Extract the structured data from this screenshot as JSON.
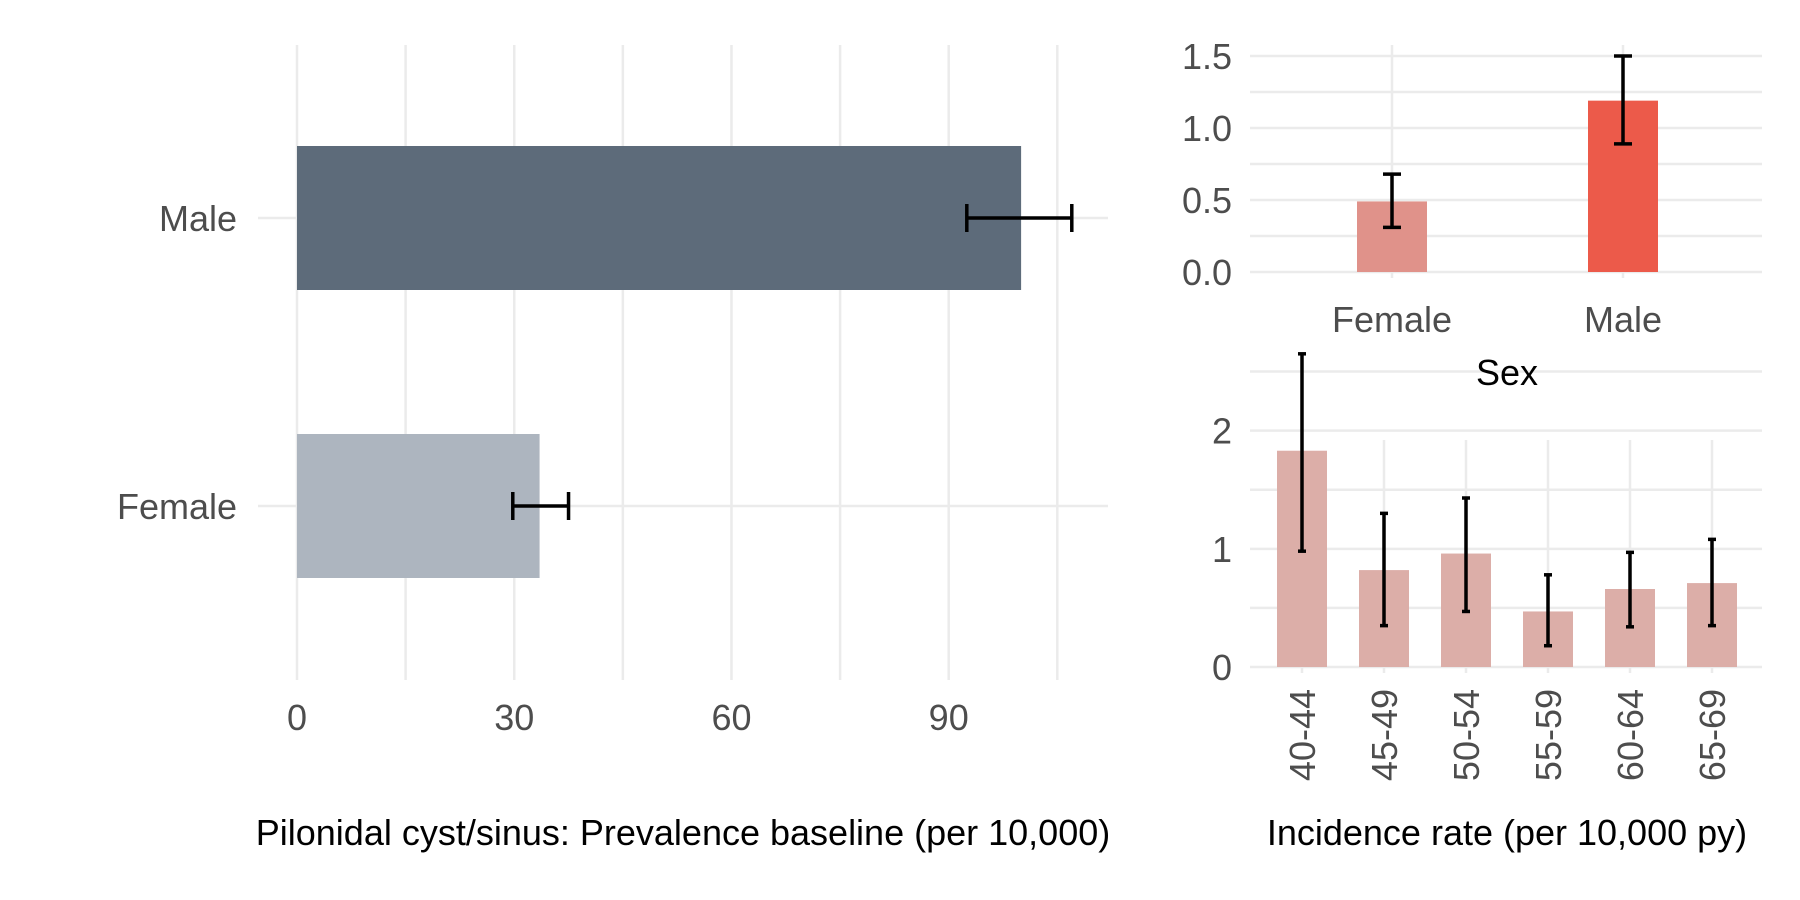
{
  "chart_data": [
    {
      "type": "bar",
      "orientation": "horizontal",
      "xlabel": "Pilonidal cyst/sinus: Prevalence baseline (per 10,000)",
      "ylabel": "",
      "categories": [
        "Male",
        "Female"
      ],
      "values": [
        100,
        33.5
      ],
      "error_low": [
        92.5,
        29.8
      ],
      "error_high": [
        107,
        37.5
      ],
      "xlim": [
        0,
        112
      ],
      "xticks": [
        "0",
        "30",
        "60",
        "90"
      ],
      "colors": [
        "#5d6b7a",
        "#adb5bf"
      ],
      "grid": true
    },
    {
      "type": "bar",
      "xlabel": "Sex",
      "ylabel": "",
      "categories": [
        "Female",
        "Male"
      ],
      "values": [
        0.49,
        1.19
      ],
      "error_low": [
        0.31,
        0.89
      ],
      "error_high": [
        0.68,
        1.5
      ],
      "ylim": [
        0,
        1.5
      ],
      "yticks": [
        "0.0",
        "0.5",
        "1.0",
        "1.5"
      ],
      "colors": [
        "#e0928a",
        "#ec5a4a"
      ],
      "grid": true
    },
    {
      "type": "bar",
      "xlabel": "Incidence rate (per 10,000 py)",
      "ylabel": "",
      "categories": [
        "40-44",
        "45-49",
        "50-54",
        "55-59",
        "60-64",
        "65-69"
      ],
      "values": [
        1.83,
        0.82,
        0.96,
        0.47,
        0.66,
        0.71
      ],
      "error_low": [
        0.98,
        0.35,
        0.47,
        0.18,
        0.34,
        0.35
      ],
      "error_high": [
        2.65,
        1.3,
        1.43,
        0.78,
        0.97,
        1.08
      ],
      "ylim": [
        0,
        2.75
      ],
      "yticks": [
        "0",
        "1",
        "2"
      ],
      "colors": [
        "#dcaea8"
      ],
      "grid": true
    }
  ]
}
